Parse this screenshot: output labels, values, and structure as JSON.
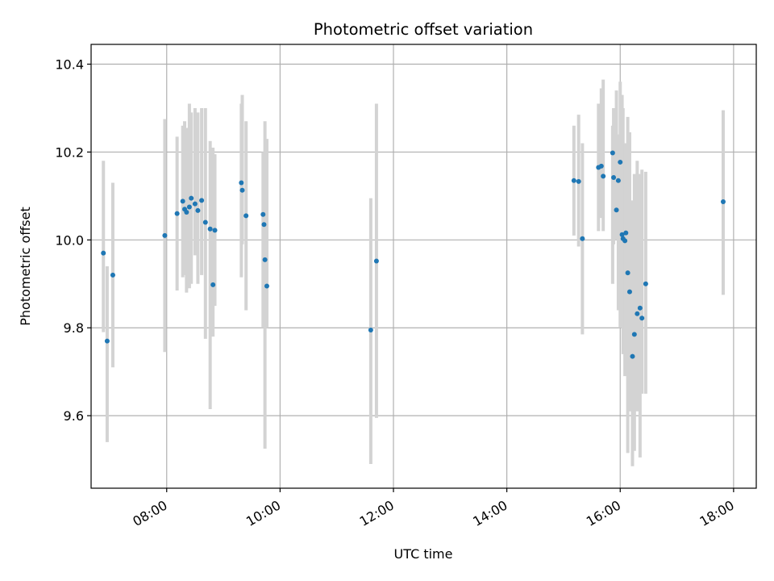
{
  "chart_data": {
    "type": "scatter",
    "title": "Photometric offset variation",
    "xlabel": "UTC time",
    "ylabel": "Photometric offset",
    "x_ticks": [
      "08:00",
      "10:00",
      "12:00",
      "14:00",
      "16:00",
      "18:00"
    ],
    "y_ticks": [
      "9.6",
      "9.8",
      "10.0",
      "10.2",
      "10.4"
    ],
    "xlim": [
      "06:40",
      "18:24"
    ],
    "ylim": [
      9.435,
      10.445
    ],
    "grid": true,
    "colors": {
      "point": "#1f77b4",
      "errorbar": "#d3d3d3",
      "grid": "#b0b0b0"
    },
    "series": [
      {
        "x": [
          "06:53",
          "06:57",
          "07:03",
          "07:58",
          "08:11",
          "08:17",
          "08:19",
          "08:21",
          "08:24",
          "08:26",
          "08:30",
          "08:33",
          "08:37",
          "08:41",
          "08:46",
          "08:49",
          "08:51",
          "09:19",
          "09:20",
          "09:24",
          "09:42",
          "09:43",
          "09:44",
          "09:46",
          "11:36",
          "11:42",
          "15:11",
          "15:16",
          "15:20",
          "15:37",
          "15:40",
          "15:42",
          "15:52",
          "15:53",
          "15:56",
          "15:58",
          "16:00",
          "16:02",
          "16:03",
          "16:05",
          "16:06",
          "16:08",
          "16:10",
          "16:13",
          "16:15",
          "16:18",
          "16:21",
          "16:23",
          "16:27"
        ],
        "y": [
          9.97,
          9.77,
          9.92,
          10.01,
          10.06,
          10.088,
          10.07,
          10.063,
          10.075,
          10.095,
          10.082,
          10.067,
          10.09,
          10.04,
          10.025,
          9.898,
          10.022,
          10.13,
          10.113,
          10.055,
          10.058,
          10.035,
          9.955,
          9.895,
          9.795,
          9.952,
          10.135,
          10.133,
          10.003,
          10.165,
          10.168,
          10.145,
          10.198,
          10.142,
          10.068,
          10.135,
          10.177,
          10.012,
          10.003,
          9.998,
          10.016,
          9.925,
          9.882,
          9.735,
          9.785,
          9.832,
          9.845,
          9.822,
          9.9
        ],
        "yerr_low": [
          9.79,
          9.54,
          9.71,
          9.745,
          9.885,
          9.915,
          9.92,
          9.88,
          9.89,
          9.9,
          9.965,
          9.9,
          9.92,
          9.775,
          9.615,
          9.78,
          9.85,
          9.915,
          9.99,
          9.84,
          9.8,
          9.87,
          9.525,
          9.8,
          9.49,
          9.595,
          10.01,
          9.985,
          9.785,
          10.02,
          10.05,
          10.02,
          9.9,
          9.99,
          10.0,
          9.84,
          9.8,
          9.88,
          9.74,
          9.69,
          9.78,
          9.515,
          9.61,
          9.485,
          9.52,
          9.61,
          9.505,
          9.65,
          9.65
        ],
        "yerr_high": [
          10.18,
          9.94,
          10.13,
          10.275,
          10.235,
          10.26,
          10.27,
          10.255,
          10.31,
          10.29,
          10.3,
          10.29,
          10.3,
          10.3,
          10.225,
          10.21,
          10.195,
          10.31,
          10.33,
          10.27,
          10.2,
          10.2,
          10.27,
          10.23,
          10.095,
          10.31,
          10.26,
          10.285,
          10.22,
          10.31,
          10.345,
          10.365,
          10.26,
          10.3,
          10.34,
          10.24,
          10.36,
          10.33,
          10.3,
          10.22,
          10.2,
          10.28,
          10.245,
          10.09,
          10.15,
          10.18,
          10.15,
          10.16,
          10.155
        ]
      },
      {
        "x": [
          "17:49"
        ],
        "y": [
          10.087
        ],
        "yerr_low": [
          9.875
        ],
        "yerr_high": [
          10.295
        ]
      }
    ]
  }
}
